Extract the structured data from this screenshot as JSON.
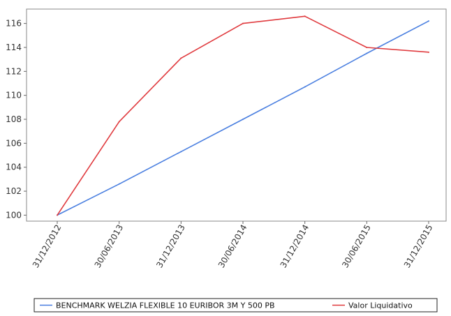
{
  "chart_data": {
    "type": "line",
    "title": "",
    "xlabel": "",
    "ylabel": "",
    "categories": [
      "31/12/2012",
      "30/06/2013",
      "31/12/2013",
      "30/06/2014",
      "31/12/2014",
      "30/06/2015",
      "31/12/2015"
    ],
    "ylim": [
      99.5,
      117.2
    ],
    "yticks": [
      100,
      102,
      104,
      106,
      108,
      110,
      112,
      114,
      116
    ],
    "grid": false,
    "legend_position": "bottom",
    "series": [
      {
        "name": "BENCHMARK WELZIA FLEXIBLE 10 EURIBOR 3M Y 500 PB",
        "color": "#4a7fe0",
        "values": [
          100.0,
          102.6,
          105.3,
          108.0,
          110.7,
          113.5,
          116.2
        ]
      },
      {
        "name": "Valor Liquidativo",
        "color": "#e03a3e",
        "values": [
          100.0,
          107.8,
          113.1,
          116.0,
          116.6,
          114.0,
          113.6
        ]
      }
    ]
  }
}
